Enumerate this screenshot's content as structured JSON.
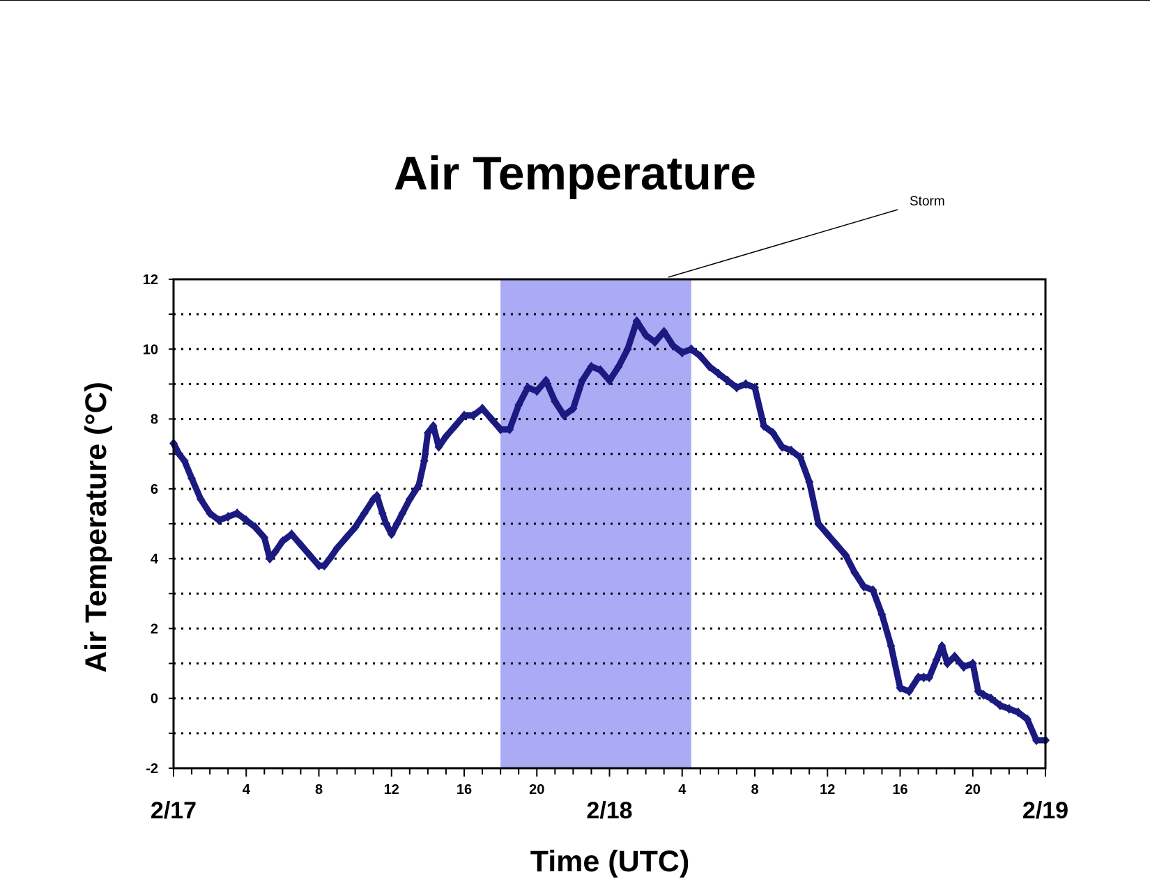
{
  "chart_data": {
    "type": "scatter",
    "title": "Air Temperature",
    "xlabel": "Time (UTC)",
    "ylabel": "Air Temperature (°C)",
    "ylim": [
      -2,
      12
    ],
    "xlim_hours": [
      0,
      48
    ],
    "y_ticks": [
      "-2",
      "0",
      "2",
      "4",
      "6",
      "8",
      "10",
      "12"
    ],
    "x_hour_ticks": [
      {
        "h": 4,
        "label": "4"
      },
      {
        "h": 8,
        "label": "8"
      },
      {
        "h": 12,
        "label": "12"
      },
      {
        "h": 16,
        "label": "16"
      },
      {
        "h": 20,
        "label": "20"
      },
      {
        "h": 28,
        "label": "4"
      },
      {
        "h": 32,
        "label": "8"
      },
      {
        "h": 36,
        "label": "12"
      },
      {
        "h": 40,
        "label": "16"
      },
      {
        "h": 44,
        "label": "20"
      }
    ],
    "x_date_labels": [
      {
        "h": 0,
        "label": "2/17"
      },
      {
        "h": 24,
        "label": "2/18"
      },
      {
        "h": 48,
        "label": "2/19"
      }
    ],
    "grid": "horizontal dotted lines every 1 °C",
    "marker": "diamond",
    "colors": {
      "series": "#1a1a80",
      "storm_band": "#aaaaf5"
    },
    "annotation": {
      "text": "Storm",
      "start_hour": 18,
      "end_hour": 28.5
    },
    "series": [
      {
        "x_hours": [
          0,
          0.3,
          0.6,
          1,
          1.5,
          2,
          2.5,
          3,
          3.5,
          4,
          4.5,
          5,
          5.3,
          5.6,
          6,
          6.5,
          7,
          7.5,
          8,
          8.3,
          8.6,
          9,
          9.5,
          10,
          10.5,
          11,
          11.2,
          11.5,
          11.7,
          12,
          12.3,
          12.6,
          13,
          13.5,
          13.8,
          14,
          14.3,
          14.6,
          15,
          15.5,
          16,
          16.5,
          17,
          17.5,
          18,
          18.5,
          19,
          19.5,
          20,
          20.5,
          21,
          21.5,
          22,
          22.5,
          23,
          23.5,
          24,
          24.5,
          25,
          25.5,
          26,
          26.5,
          27,
          27.5,
          28,
          28.5,
          29,
          29.5,
          30,
          30.5,
          31,
          31.5,
          32,
          32.5,
          33,
          33.5,
          34,
          34.5,
          35,
          35.5,
          36,
          36.5,
          37,
          37.5,
          38,
          38.5,
          39,
          39.5,
          40,
          40.5,
          41,
          41.3,
          41.6,
          42,
          42.3,
          42.6,
          43,
          43.5,
          44,
          44.3,
          44.6,
          45,
          45.5,
          46,
          46.5,
          47,
          47.5,
          48
        ],
        "y": [
          7.3,
          7.0,
          6.8,
          6.3,
          5.7,
          5.3,
          5.1,
          5.2,
          5.3,
          5.1,
          4.9,
          4.6,
          4.0,
          4.2,
          4.5,
          4.7,
          4.4,
          4.1,
          3.8,
          3.8,
          4.0,
          4.3,
          4.6,
          4.9,
          5.3,
          5.7,
          5.8,
          5.3,
          5.0,
          4.7,
          5.0,
          5.3,
          5.7,
          6.1,
          6.8,
          7.6,
          7.8,
          7.2,
          7.5,
          7.8,
          8.1,
          8.1,
          8.3,
          8.0,
          7.7,
          7.7,
          8.4,
          8.9,
          8.8,
          9.1,
          8.5,
          8.1,
          8.3,
          9.1,
          9.5,
          9.4,
          9.1,
          9.5,
          10.0,
          10.8,
          10.4,
          10.2,
          10.5,
          10.1,
          9.9,
          10.0,
          9.8,
          9.5,
          9.3,
          9.1,
          8.9,
          9.0,
          8.9,
          7.8,
          7.6,
          7.2,
          7.1,
          6.9,
          6.2,
          5.0,
          4.7,
          4.4,
          4.1,
          3.6,
          3.2,
          3.1,
          2.4,
          1.5,
          0.3,
          0.2,
          0.6,
          0.6,
          0.6,
          1.1,
          1.5,
          1.0,
          1.2,
          0.9,
          1.0,
          0.2,
          0.1,
          0.0,
          -0.2,
          -0.3,
          -0.4,
          -0.6,
          -1.2,
          -1.2
        ]
      }
    ]
  }
}
